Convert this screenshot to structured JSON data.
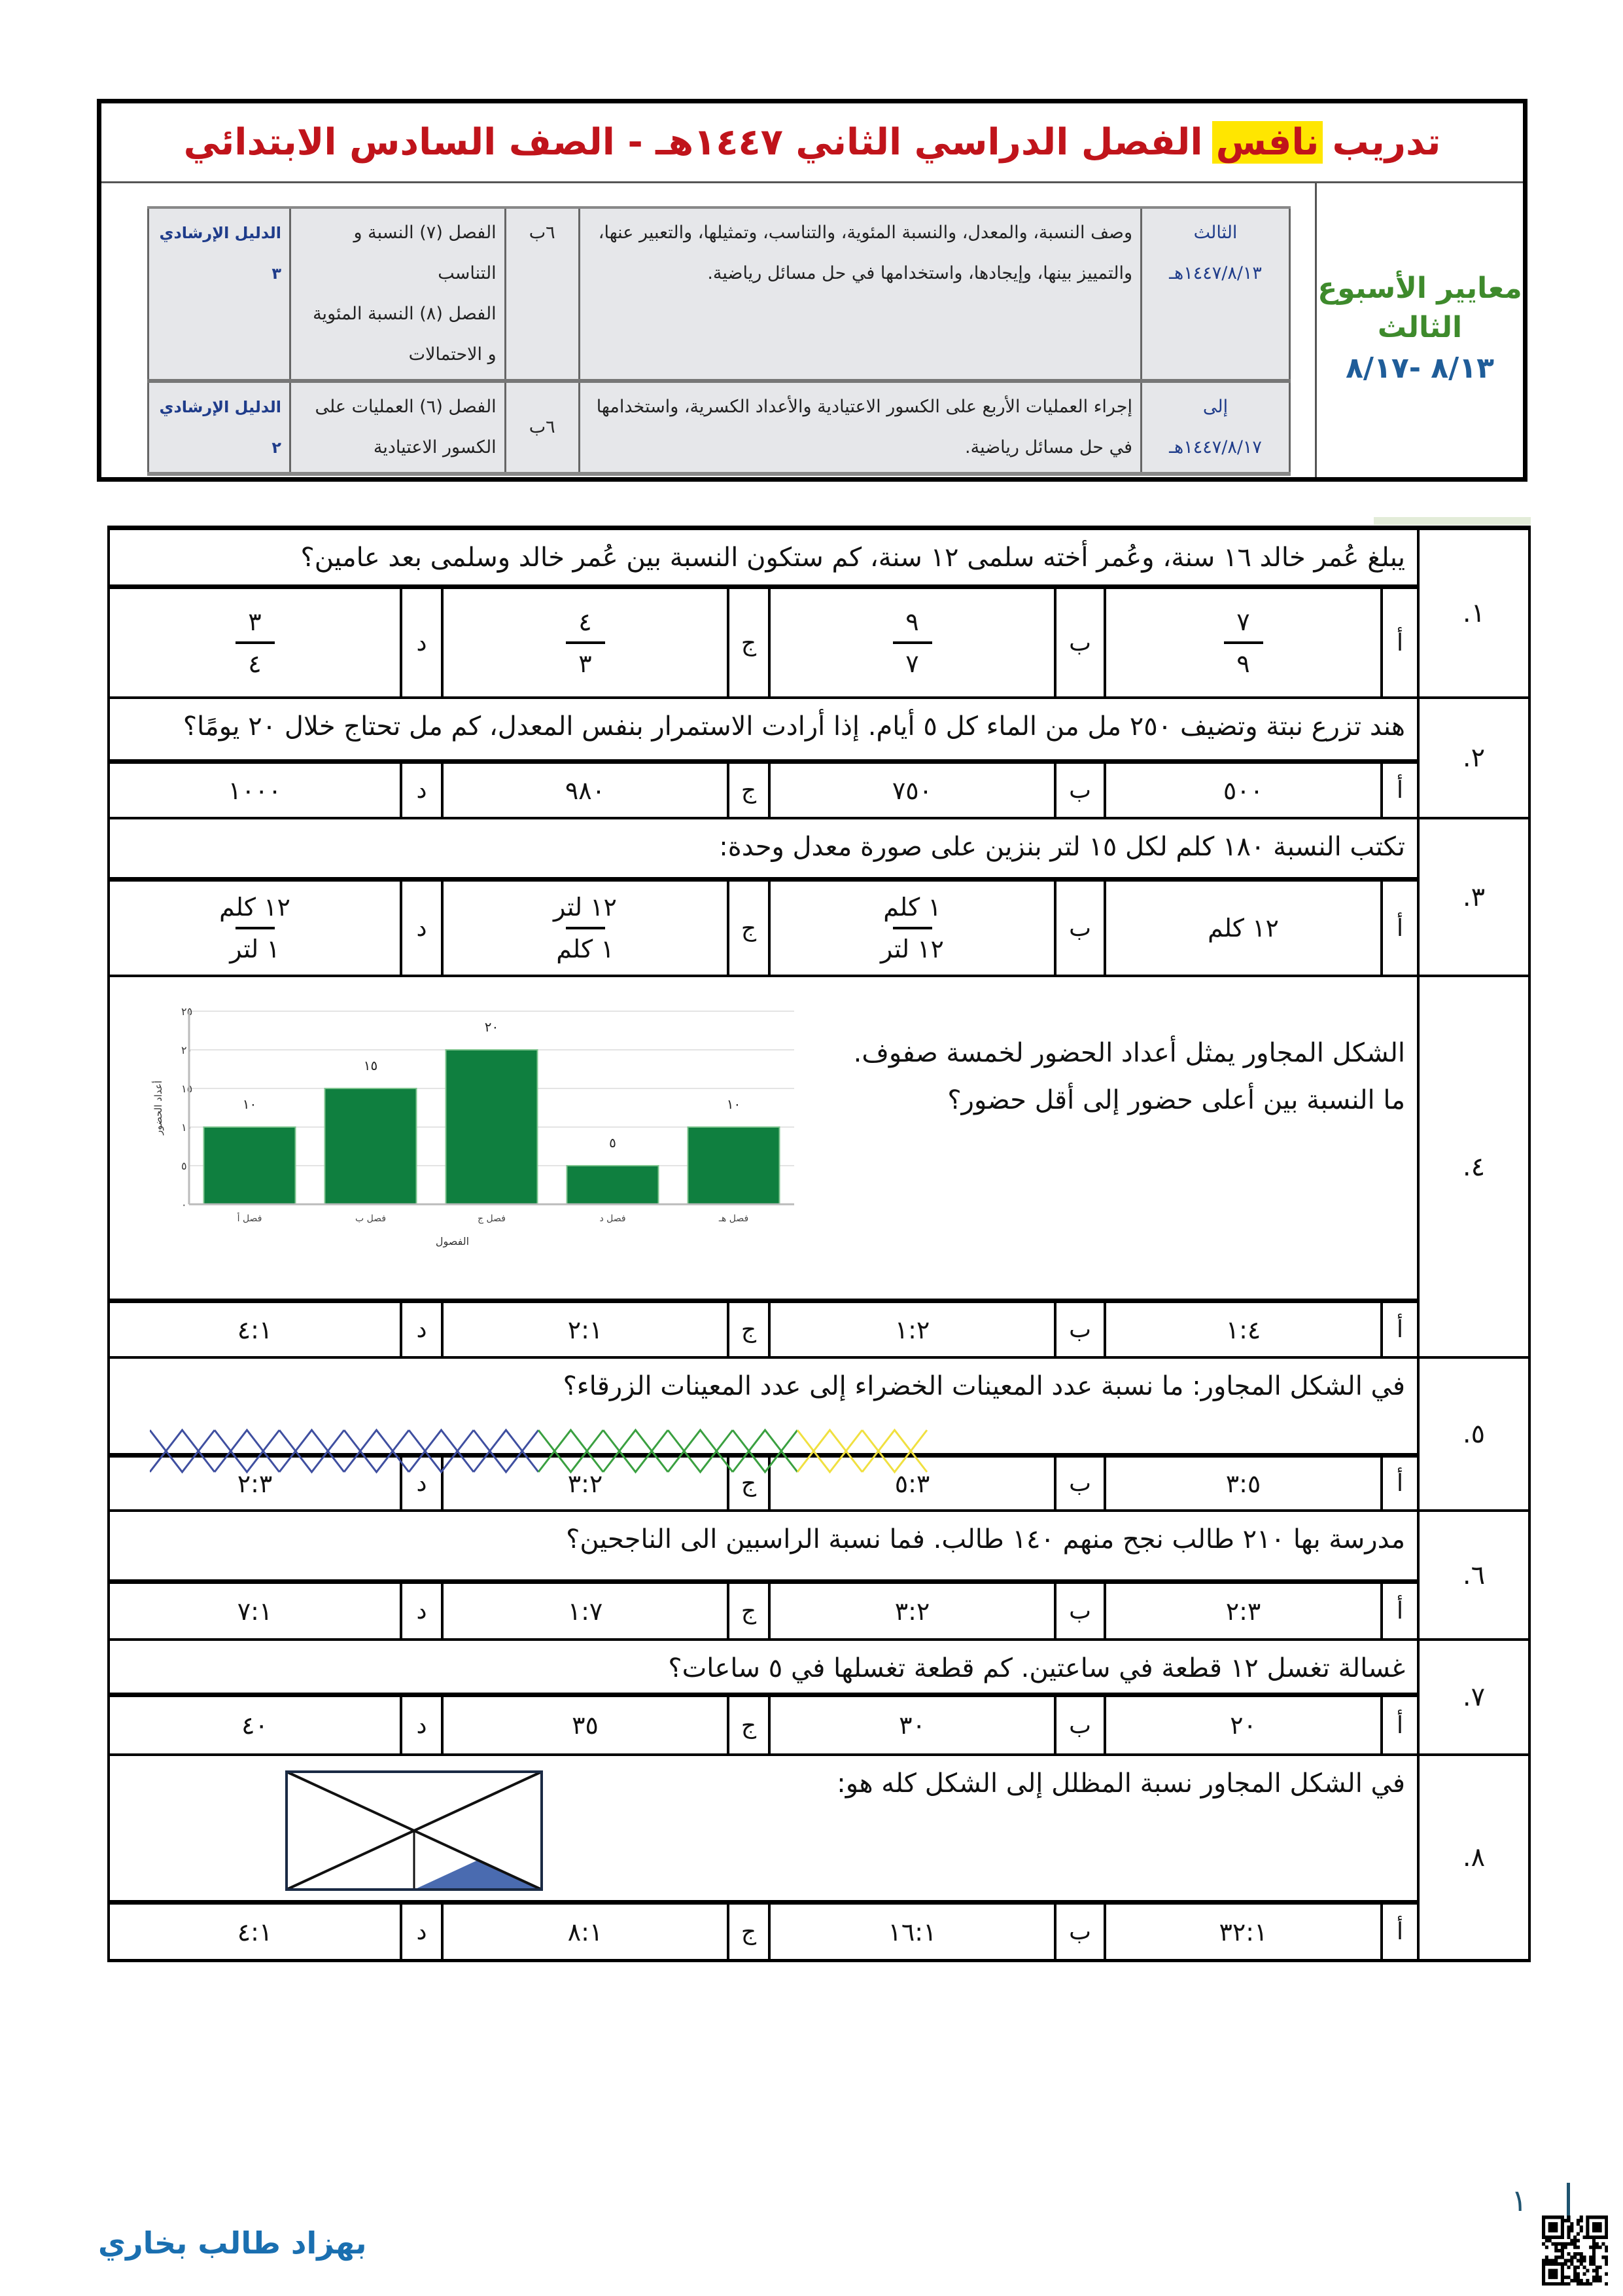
{
  "header": {
    "title_prefix": "تدريب",
    "title_highlight": "نافس",
    "title_rest": "الفصل الدراسي الثاني ١٤٤٧هـ - الصف السادس الابتدائي",
    "week_line1": "معايير الأسبوع",
    "week_line2": "الثالث",
    "week_dates": "٨/١٣ -٨/١٧",
    "highlight_color": "#ffe600",
    "title_color": "#c0141b"
  },
  "standards": [
    {
      "date_top": "الثالث",
      "date_bottom": "١٤٤٧/٨/١٣هـ",
      "standard": "وصف النسبة، والمعدل، والنسبة المئوية، والتناسب، وتمثيلها، والتعبير عنها، والتمييز بينها، وإيجادها، واستخدامها في حل مسائل رياضية.",
      "grade": "٦ب",
      "chapter_1": "الفصل (٧) النسبة و التناسب",
      "chapter_2": "الفصل (٨) النسبة المئوية و الاحتمالات",
      "guide": "الدليل الإرشادي ٣"
    },
    {
      "date_top": "إلى",
      "date_bottom": "١٤٤٧/٨/١٧هـ",
      "standard": "إجراء العمليات الأربع على الكسور الاعتيادية والأعداد الكسرية، واستخدامها في حل مسائل رياضية.",
      "grade": "٦ب",
      "chapter_1": "الفصل (٦) العمليات على الكسور الاعتيادية",
      "guide": "الدليل الإرشادي ٢"
    }
  ],
  "option_labels": [
    "أ",
    "ب",
    "ج",
    "د"
  ],
  "questions": [
    {
      "number": "١.",
      "lines": [
        "يبلغ عُمر خالد ١٦ سنة، وعُمر أخته سلمى ١٢ سنة، كم ستكون النسبة بين عُمر خالد وسلمى بعد عامين؟"
      ],
      "options": [
        {
          "num": "٧",
          "den": "٩"
        },
        {
          "num": "٩",
          "den": "٧"
        },
        {
          "num": "٤",
          "den": "٣"
        },
        {
          "num": "٣",
          "den": "٤"
        }
      ]
    },
    {
      "number": "٢.",
      "lines": [
        "هند تزرع نبتة وتضيف ٢٥٠ مل من الماء كل ٥ أيام. إذا أرادت الاستمرار بنفس المعدل، كم مل تحتاج خلال ٢٠ يومًا؟"
      ],
      "options": [
        "٥٠٠",
        "٧٥٠",
        "٩٨٠",
        "١٠٠٠"
      ]
    },
    {
      "number": "٣.",
      "lines": [
        "تكتب النسبة ١٨٠ كلم لكل ١٥ لتر بنزين على صورة معدل وحدة:"
      ],
      "options": [
        "١٢ كلم",
        {
          "num": "١ كلم",
          "den": "١٢ لتر"
        },
        {
          "num": "١٢ لتر",
          "den": "١ كلم"
        },
        {
          "num": "١٢ كلم",
          "den": "١ لتر"
        }
      ]
    },
    {
      "number": "٤.",
      "lines": [
        "الشكل المجاور يمثل أعداد الحضور لخمسة صفوف.",
        "ما النسبة بين أعلى حضور إلى أقل حضور؟"
      ],
      "options": [
        "١:٤",
        "١:٢",
        "٢:١",
        "٤:١"
      ]
    },
    {
      "number": "٥.",
      "lines": [
        "في الشكل المجاور: ما نسبة عدد المعينات الخضراء إلى عدد المعينات الزرقاء؟"
      ],
      "options": [
        "٣:٥",
        "٥:٣",
        "٣:٢",
        "٢:٣"
      ]
    },
    {
      "number": "٦.",
      "lines": [
        "مدرسة بها ٢١٠ طالب نجح منهم ١٤٠ طالب. فما نسبة الراسبين الى الناجحين؟"
      ],
      "options": [
        "٢:٣",
        "٣:٢",
        "١:٧",
        "٧:١"
      ]
    },
    {
      "number": "٧.",
      "lines": [
        "غسالة تغسل ١٢ قطعة في ساعتين. كم قطعة تغسلها في ٥ ساعات؟"
      ],
      "options": [
        "٢٠",
        "٣٠",
        "٣٥",
        "٤٠"
      ]
    },
    {
      "number": "٨.",
      "lines": [
        "في الشكل المجاور نسبة المظلل إلى الشكل كله هو:"
      ],
      "options": [
        "٣٢:١",
        "١٦:١",
        "٨:١",
        "٤:١"
      ]
    }
  ],
  "chart_data": {
    "type": "bar",
    "categories": [
      "فصل أ",
      "فصل ب",
      "فصل ج",
      "فصل د",
      "فصل هـ"
    ],
    "values": [
      10,
      15,
      20,
      5,
      10
    ],
    "value_labels": [
      "١٠",
      "١٥",
      "٢٠",
      "٥",
      "١٠"
    ],
    "xlabel": "الفصول",
    "ylabel": "أعداد الحضور",
    "ylim": [
      0,
      25
    ],
    "yticks": [
      0,
      5,
      10,
      15,
      20,
      25
    ],
    "ytick_labels": [
      "٠",
      "٥",
      "١٠",
      "١٥",
      "٢٠",
      "٢٥"
    ],
    "grid": true,
    "bar_color": "#0f7f3f"
  },
  "diamond_pattern": {
    "groups": [
      {
        "color": "#3f4fa0",
        "count": 6
      },
      {
        "color": "#3aa040",
        "count": 4
      },
      {
        "color": "#f0e040",
        "count": 2
      }
    ]
  },
  "shape": {
    "shaded_fraction": "1/16",
    "shade_color": "#4a6bb0"
  },
  "footer": {
    "page_number": "١",
    "author": "بهزاد طالب بخاري"
  }
}
